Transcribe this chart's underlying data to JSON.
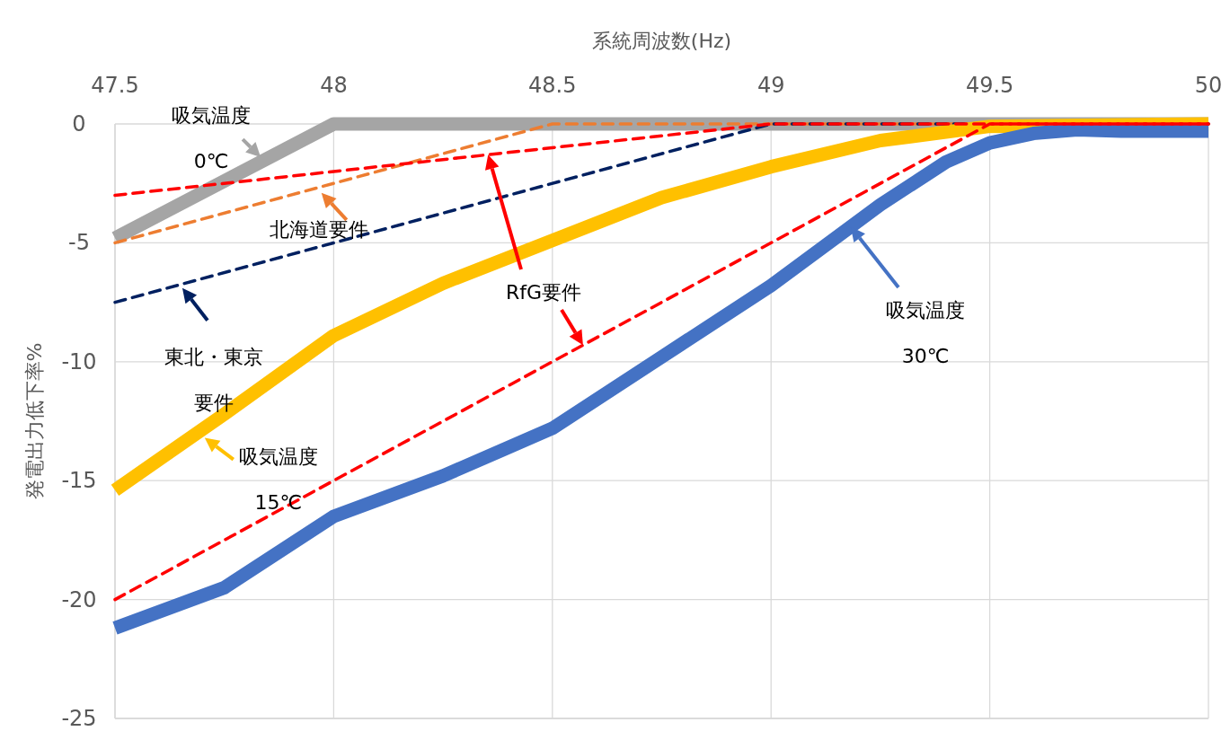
{
  "chart_data": {
    "type": "line",
    "xlabel": "系統周波数(Hz)",
    "ylabel": "発電出力低下率%",
    "xlim": [
      47.5,
      50
    ],
    "xticks": [
      47.5,
      48,
      48.5,
      49,
      49.5,
      50
    ],
    "ylim": [
      -25,
      0
    ],
    "yticks": [
      -25,
      -20,
      -15,
      -10,
      -5,
      0
    ],
    "grid": true,
    "marker": "none",
    "series": [
      {
        "color": "#a5a5a5",
        "line_style": "solid",
        "x": [
          47.5,
          48,
          50
        ],
        "values": [
          -4.8,
          0,
          0
        ]
      },
      {
        "color": "#ed7d31",
        "line_style": "dashed",
        "x": [
          47.5,
          48.5,
          50
        ],
        "values": [
          -5,
          0,
          0
        ]
      },
      {
        "color": "#002060",
        "line_style": "dashed",
        "x": [
          47.5,
          49,
          50
        ],
        "values": [
          -7.5,
          0,
          0
        ]
      },
      {
        "color": "#ffc000",
        "line_style": "solid",
        "x": [
          47.5,
          47.75,
          48,
          48.25,
          48.5,
          48.75,
          49,
          49.25,
          49.5,
          50
        ],
        "values": [
          -15.4,
          -12.2,
          -8.9,
          -6.7,
          -4.9,
          -3.1,
          -1.8,
          -0.7,
          -0.1,
          0
        ]
      },
      {
        "color": "#4472c4",
        "line_style": "solid",
        "x": [
          47.5,
          47.75,
          48,
          48.25,
          48.5,
          48.75,
          49,
          49.25,
          49.4,
          49.5,
          49.6,
          49.7,
          49.8,
          50
        ],
        "values": [
          -21.2,
          -19.5,
          -16.5,
          -14.8,
          -12.8,
          -9.8,
          -6.8,
          -3.4,
          -1.6,
          -0.8,
          -0.4,
          -0.25,
          -0.3,
          -0.3
        ]
      },
      {
        "color": "#ff0000",
        "line_style": "dashed",
        "x": [
          47.5,
          49,
          50
        ],
        "values": [
          -3,
          0,
          0
        ]
      },
      {
        "color": "#ff0000",
        "line_style": "dashed",
        "x": [
          47.5,
          49.5,
          50
        ],
        "values": [
          -20,
          0,
          0
        ]
      }
    ],
    "annotations": [
      {
        "text": "吸気温度\n0℃",
        "x": 47.833,
        "y": -1.4
      },
      {
        "text": "北海道要件",
        "x": 47.972,
        "y": -2.9
      },
      {
        "text": "東北・東京要件",
        "x": 47.654,
        "y": -6.9
      },
      "RfG要件",
      {
        "text": "吸気温度\n15℃",
        "x": 47.705,
        "y": -13.2
      },
      "吸気温度\n30℃"
    ]
  }
}
